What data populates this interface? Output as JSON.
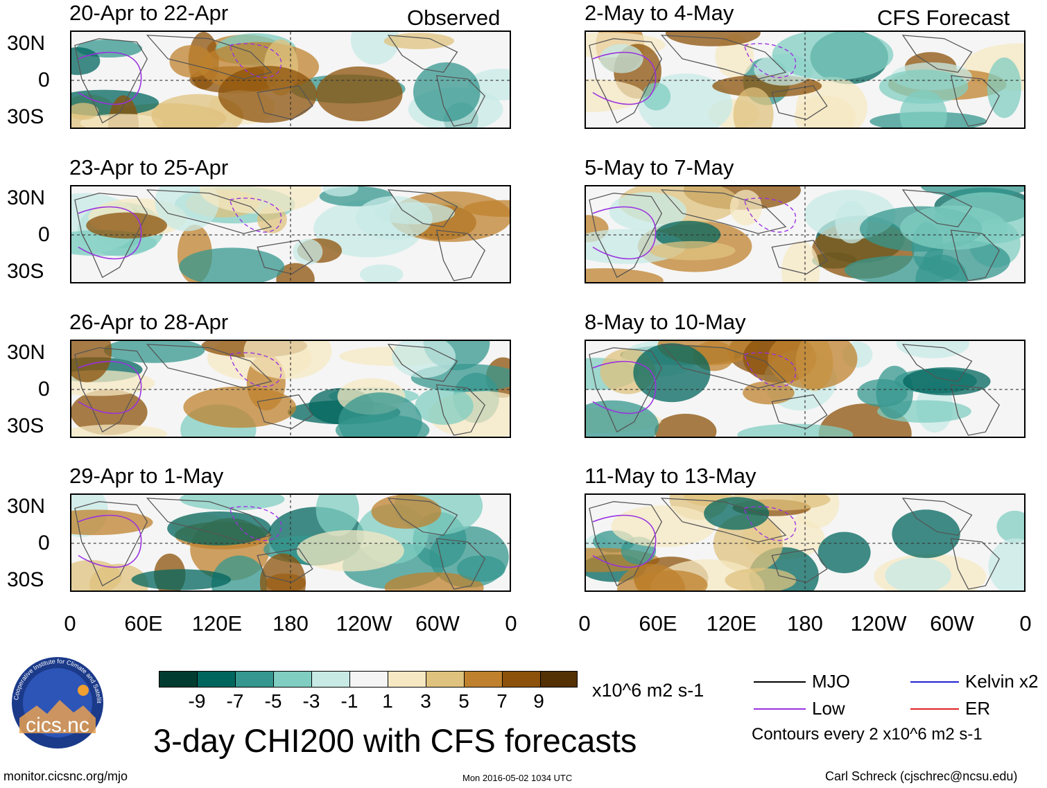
{
  "columns": {
    "left_label": "Observed",
    "right_label": "CFS Forecast"
  },
  "panels_left": [
    {
      "title": "20-Apr to 22-Apr"
    },
    {
      "title": "23-Apr to 25-Apr"
    },
    {
      "title": "26-Apr to 28-Apr"
    },
    {
      "title": "29-Apr to 1-May"
    }
  ],
  "panels_right": [
    {
      "title": "2-May to 4-May"
    },
    {
      "title": "5-May to 7-May"
    },
    {
      "title": "8-May to 10-May"
    },
    {
      "title": "11-May to 13-May"
    }
  ],
  "lat_labels": [
    "30N",
    "0",
    "30S"
  ],
  "lon_labels": [
    "0",
    "60E",
    "120E",
    "180",
    "120W",
    "60W",
    "0"
  ],
  "colorbar": {
    "colors": [
      "#013c30",
      "#01665e",
      "#35978f",
      "#80cdc1",
      "#c7eae5",
      "#f5f5f5",
      "#f6e8c3",
      "#dfc27d",
      "#bf812d",
      "#8c510a",
      "#543005"
    ],
    "ticks": [
      "-9",
      "-7",
      "-5",
      "-3",
      "-1",
      "1",
      "3",
      "5",
      "7",
      "9"
    ],
    "units": "x10^6 m2 s-1"
  },
  "main_title": "3-day CHI200 with CFS forecasts",
  "legend": {
    "items": [
      {
        "label": "MJO",
        "color": "#000000"
      },
      {
        "label": "Kelvin x2",
        "color": "#2020d0"
      },
      {
        "label": "Low",
        "color": "#9a30e0"
      },
      {
        "label": "ER",
        "color": "#e02020"
      }
    ],
    "note": "Contours every 2 x10^6 m2 s-1"
  },
  "logo": {
    "text": "cics.nc",
    "ring_text": "Cooperative Institute for Climate and Satellites"
  },
  "footer": {
    "url": "monitor.cicsnc.org/mjo",
    "timestamp": "Mon 2016-05-02 1034 UTC",
    "author": "Carl Schreck (cjschrec@ncsu.edu)"
  }
}
